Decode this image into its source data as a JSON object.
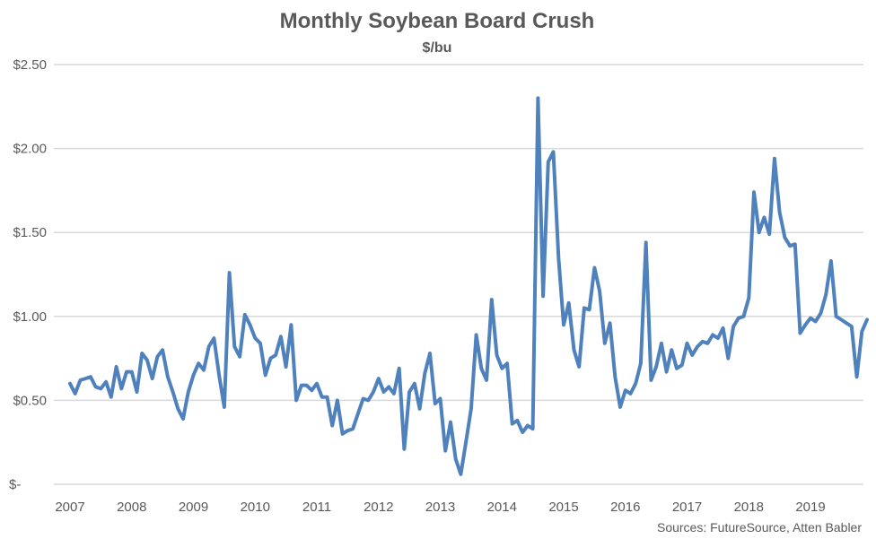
{
  "chart_data": {
    "type": "line",
    "title": "Monthly Soybean Board Crush",
    "subtitle": "$/bu",
    "xlabel": "",
    "ylabel": "",
    "source": "Sources: FutureSource, Atten Babler",
    "ylim": [
      0,
      2.5
    ],
    "y_ticks": [
      0,
      0.5,
      1.0,
      1.5,
      2.0,
      2.5
    ],
    "y_tick_labels": [
      "$-",
      "$0.50",
      "$1.00",
      "$1.50",
      "$2.00",
      "$2.50"
    ],
    "x_tick_labels": [
      "2007",
      "2008",
      "2009",
      "2010",
      "2011",
      "2012",
      "2013",
      "2014",
      "2015",
      "2016",
      "2017",
      "2018",
      "2019"
    ],
    "x_start": "2007-01",
    "x_frequency": "monthly",
    "grid": true,
    "legend": "none",
    "line_color": "#4F81BD",
    "series": [
      {
        "name": "Board Crush",
        "values": [
          0.6,
          0.54,
          0.62,
          0.63,
          0.64,
          0.58,
          0.57,
          0.61,
          0.52,
          0.7,
          0.57,
          0.67,
          0.67,
          0.55,
          0.78,
          0.74,
          0.63,
          0.76,
          0.8,
          0.64,
          0.55,
          0.45,
          0.39,
          0.55,
          0.65,
          0.72,
          0.68,
          0.82,
          0.87,
          0.65,
          0.46,
          1.26,
          0.82,
          0.76,
          1.01,
          0.95,
          0.87,
          0.84,
          0.65,
          0.75,
          0.77,
          0.88,
          0.7,
          0.95,
          0.5,
          0.59,
          0.59,
          0.56,
          0.6,
          0.52,
          0.52,
          0.35,
          0.5,
          0.3,
          0.32,
          0.33,
          0.42,
          0.51,
          0.5,
          0.55,
          0.63,
          0.55,
          0.58,
          0.54,
          0.69,
          0.21,
          0.55,
          0.6,
          0.45,
          0.66,
          0.78,
          0.48,
          0.51,
          0.2,
          0.37,
          0.15,
          0.06,
          0.25,
          0.45,
          0.89,
          0.69,
          0.62,
          1.1,
          0.77,
          0.69,
          0.72,
          0.36,
          0.38,
          0.31,
          0.35,
          0.33,
          2.3,
          1.12,
          1.92,
          1.98,
          1.35,
          0.95,
          1.08,
          0.8,
          0.7,
          1.05,
          1.04,
          1.29,
          1.15,
          0.84,
          0.96,
          0.64,
          0.46,
          0.56,
          0.54,
          0.6,
          0.72,
          1.44,
          0.62,
          0.7,
          0.84,
          0.67,
          0.8,
          0.69,
          0.71,
          0.84,
          0.77,
          0.82,
          0.85,
          0.84,
          0.89,
          0.87,
          0.93,
          0.75,
          0.94,
          0.99,
          1.0,
          1.11,
          1.74,
          1.5,
          1.59,
          1.49,
          1.94,
          1.62,
          1.47,
          1.42,
          1.43,
          0.9,
          0.95,
          0.99,
          0.97,
          1.02,
          1.13,
          1.33,
          1.0,
          0.98,
          0.96,
          0.94,
          0.64,
          0.91,
          0.98
        ]
      }
    ]
  }
}
